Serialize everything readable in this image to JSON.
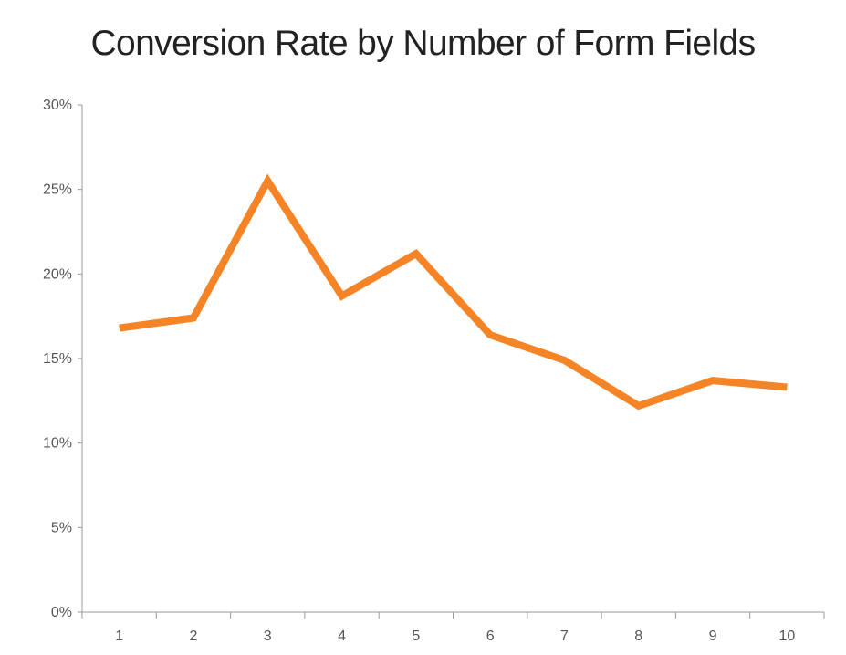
{
  "chart_data": {
    "type": "line",
    "title": "Conversion Rate by Number of Form Fields",
    "xlabel": "",
    "ylabel": "",
    "categories": [
      "1",
      "2",
      "3",
      "4",
      "5",
      "6",
      "7",
      "8",
      "9",
      "10"
    ],
    "series": [
      {
        "values": [
          16.8,
          17.4,
          25.5,
          18.7,
          21.2,
          16.4,
          14.9,
          12.2,
          13.7,
          13.3
        ],
        "color": "#f58426"
      }
    ],
    "ylim": [
      0,
      30
    ],
    "y_ticks": [
      0,
      5,
      10,
      15,
      20,
      25,
      30
    ],
    "y_tick_labels": [
      "0%",
      "5%",
      "10%",
      "15%",
      "20%",
      "25%",
      "30%"
    ],
    "grid": false,
    "legend": "none",
    "axis_color": "#999999"
  }
}
